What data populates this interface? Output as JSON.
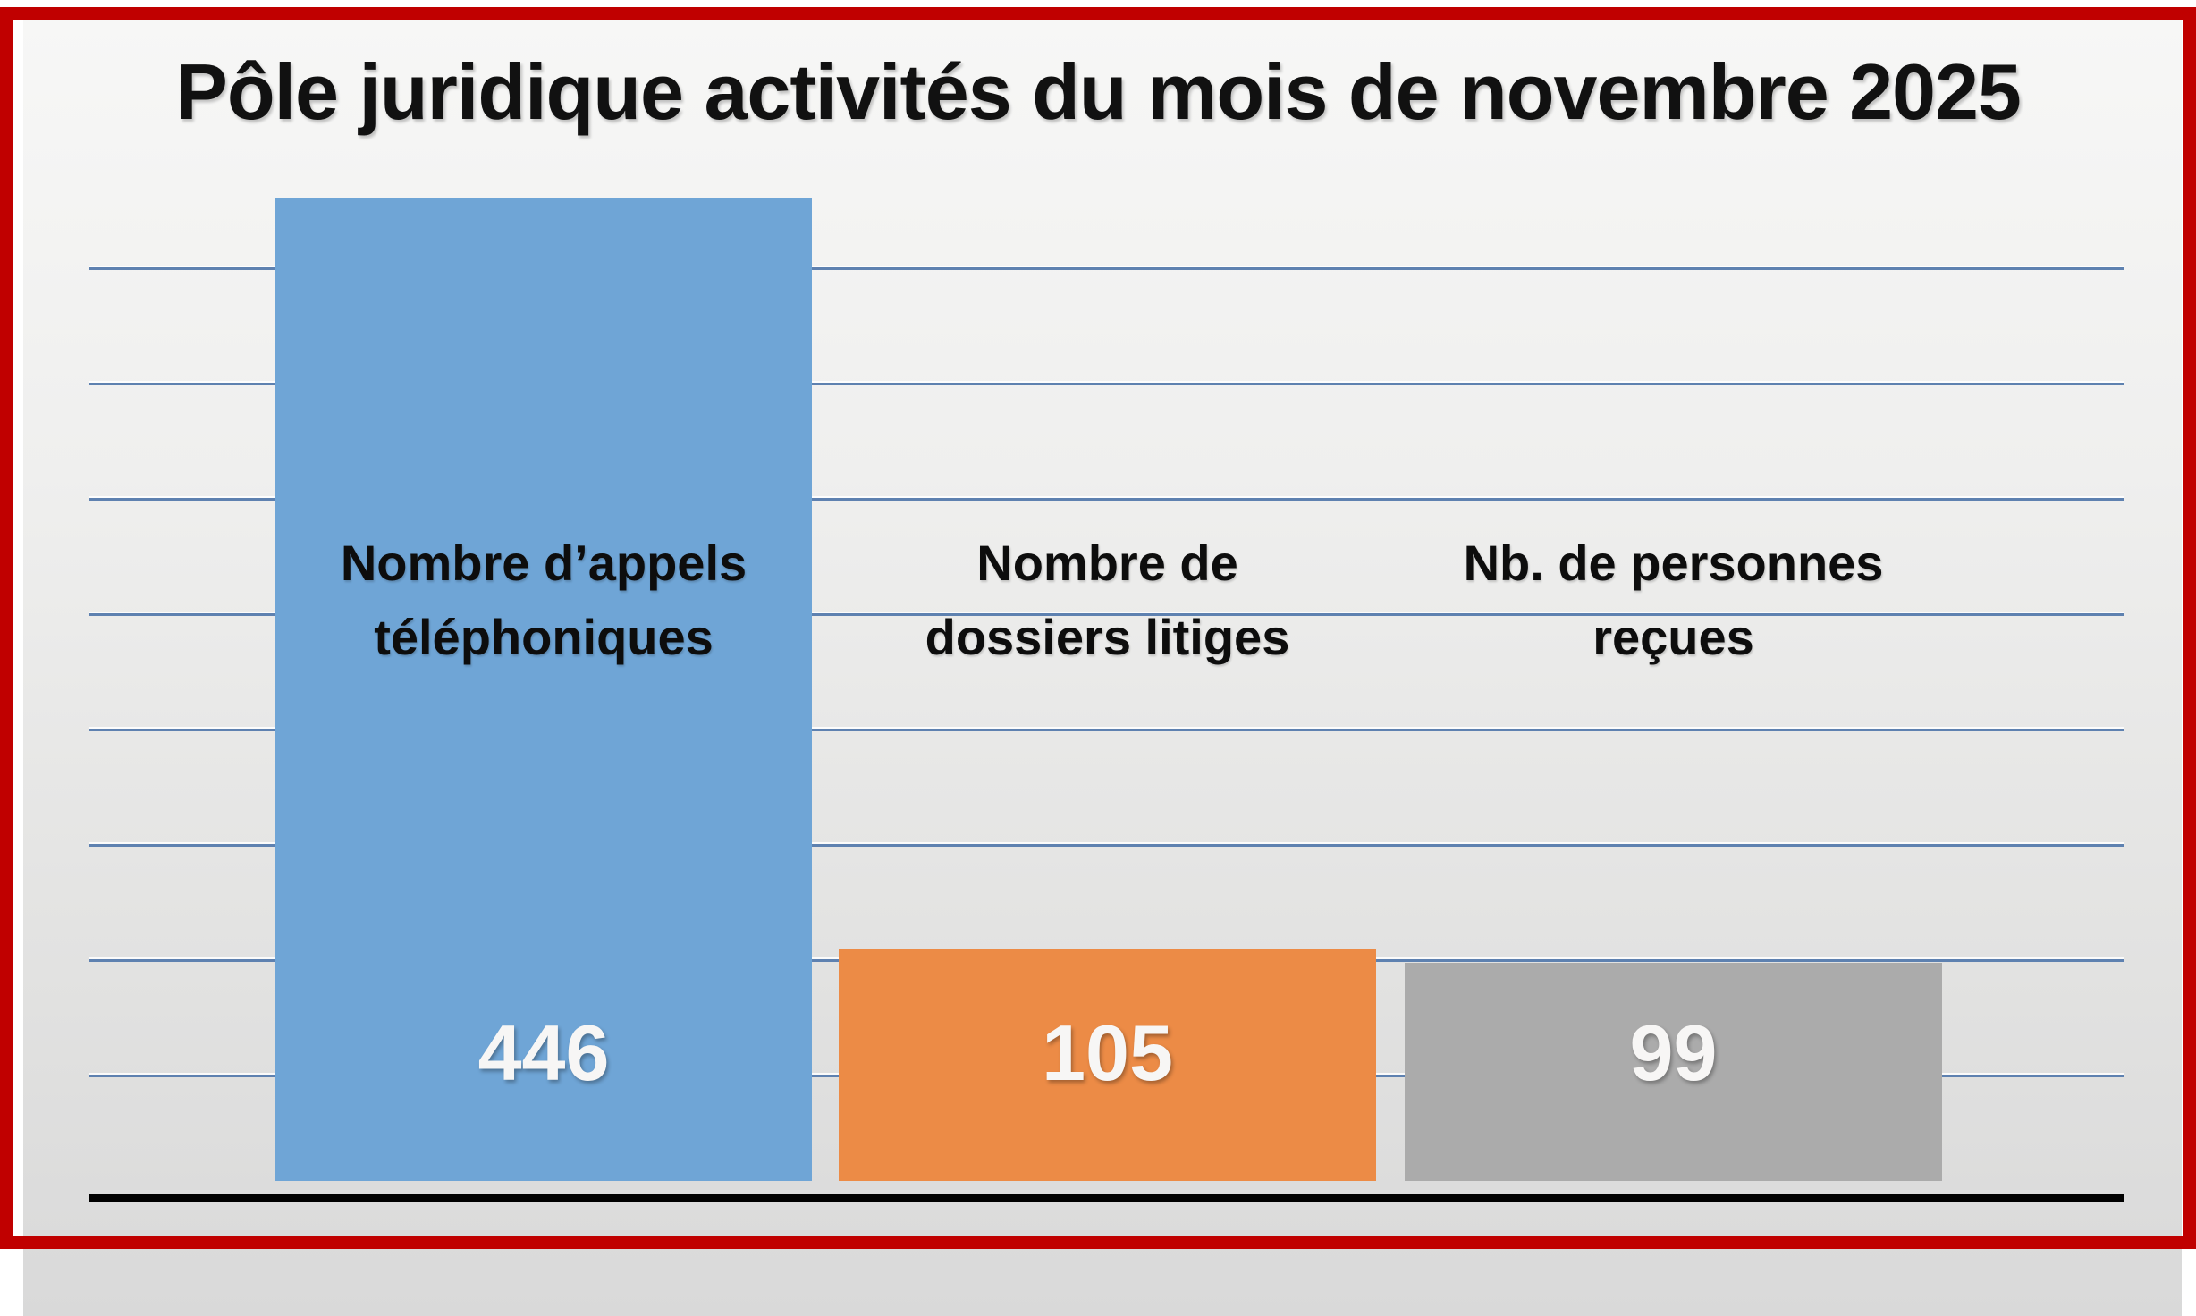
{
  "title": "Pôle juridique activités du mois de novembre 2025",
  "frame": {
    "border_color": "#c00000"
  },
  "axis": {
    "color": "#000000"
  },
  "chart_data": {
    "type": "bar",
    "title": "Pôle juridique activités du mois de novembre 2025",
    "categories": [
      "Nombre d’appels téléphoniques",
      "Nombre de dossiers litiges",
      "Nb. de personnes reçues"
    ],
    "category_lines": [
      [
        "Nombre d’appels",
        "téléphoniques"
      ],
      [
        "Nombre de",
        "dossiers litiges"
      ],
      [
        "Nb. de personnes",
        "reçues"
      ]
    ],
    "values": [
      446,
      105,
      99
    ],
    "value_labels": [
      "446",
      "105",
      "99"
    ],
    "bar_colors": [
      "#6fa5d6",
      "#ec8b46",
      "#ababab"
    ],
    "xlabel": "",
    "ylabel": "",
    "ylim": [
      0,
      455
    ],
    "gridlines": {
      "visible": true,
      "count": 8,
      "color": "#5e81b0"
    },
    "legend": "none",
    "value_label_color": "#f7f6f5",
    "category_label_color": "#0d0d0d"
  }
}
